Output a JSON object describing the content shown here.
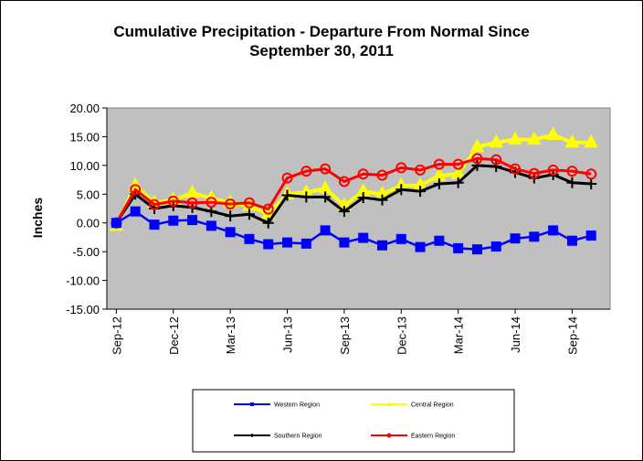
{
  "chart_data": {
    "type": "line",
    "title_line1": "Cumulative Precipitation - Departure From Normal Since",
    "title_line2": "September 30, 2011",
    "ylabel": "Inches",
    "ylim": [
      -15,
      20
    ],
    "yticks": [
      "20.00",
      "15.00",
      "10.00",
      "5.00",
      "0.00",
      "-5.00",
      "-10.00",
      "-15.00"
    ],
    "ytick_values": [
      20,
      15,
      10,
      5,
      0,
      -5,
      -10,
      -15
    ],
    "xtick_labels": [
      "Sep-12",
      "Dec-12",
      "Mar-13",
      "Jun-13",
      "Sep-13",
      "Dec-13",
      "Mar-14",
      "Jun-14",
      "Sep-14"
    ],
    "xtick_index": [
      0,
      3,
      6,
      9,
      12,
      15,
      18,
      21,
      24
    ],
    "n_points": 26,
    "grid": false,
    "plot_background": "#c0c0c0",
    "legend_position": "bottom",
    "series": [
      {
        "name": "Western Region",
        "color": "#0000ff",
        "marker": "square",
        "values": [
          0,
          2,
          -0.3,
          0.4,
          0.5,
          -0.5,
          -1.6,
          -2.8,
          -3.7,
          -3.4,
          -3.6,
          -1.3,
          -3.4,
          -2.6,
          -3.9,
          -2.8,
          -4.2,
          -3.1,
          -4.4,
          -4.6,
          -4.1,
          -2.7,
          -2.4,
          -1.3,
          -3.1,
          -2.2
        ]
      },
      {
        "name": "Central Region",
        "color": "#ffff00",
        "marker": "triangle",
        "values": [
          -0.5,
          6.5,
          3.5,
          4,
          5.2,
          4.3,
          3.5,
          3,
          1.5,
          5,
          5.3,
          6,
          3,
          5.5,
          5,
          6.5,
          6.5,
          8.2,
          8.5,
          13.2,
          14,
          14.5,
          14.5,
          15.3,
          14,
          14
        ]
      },
      {
        "name": "Southern Region",
        "color": "#000000",
        "marker": "plus",
        "values": [
          0,
          5,
          2.5,
          3,
          2.7,
          2,
          1.2,
          1.5,
          0,
          4.8,
          4.5,
          4.5,
          2,
          4.4,
          4,
          5.8,
          5.5,
          6.8,
          7,
          10,
          9.8,
          8.8,
          7.8,
          8.4,
          7,
          6.8
        ]
      },
      {
        "name": "Eastern Region",
        "color": "#ff0000",
        "marker": "circle",
        "values": [
          0,
          5.8,
          3.2,
          3.8,
          3.5,
          3.6,
          3.3,
          3.5,
          2.4,
          7.8,
          9,
          9.4,
          7.2,
          8.5,
          8.3,
          9.6,
          9.2,
          10.2,
          10.2,
          11.2,
          11,
          9.4,
          8.6,
          9.2,
          9,
          8.5
        ]
      }
    ]
  }
}
